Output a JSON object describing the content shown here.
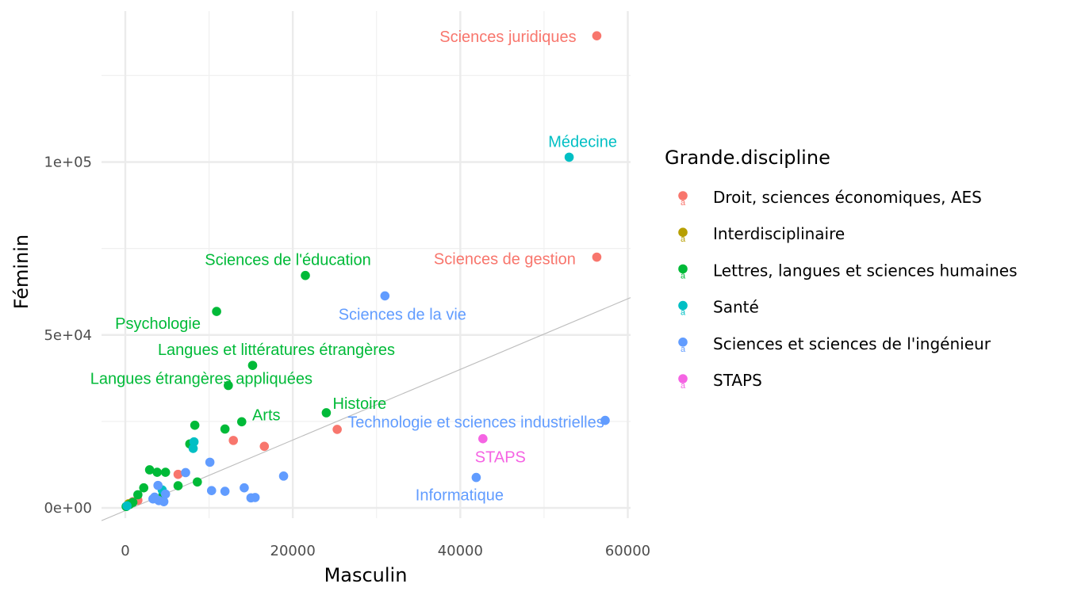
{
  "chart_data": {
    "type": "scatter",
    "xlabel": "Masculin",
    "ylabel": "Féminin",
    "xlim": [
      -3500,
      60000
    ],
    "ylim": [
      -5000,
      145000
    ],
    "x_ticks": [
      0,
      20000,
      40000,
      60000
    ],
    "x_tick_labels": [
      "0",
      "20000",
      "40000",
      "60000"
    ],
    "y_ticks": [
      0,
      50000,
      100000
    ],
    "y_tick_labels": [
      "0e+00",
      "5e+04",
      "1e+05"
    ],
    "grid": true,
    "reference_line": {
      "slope": 1,
      "intercept": 0
    },
    "legend": {
      "title": "Grande.discipline",
      "placement": "right",
      "entries": [
        {
          "name": "Droit, sciences économiques, AES",
          "color": "#F8766D"
        },
        {
          "name": "Interdisciplinaire",
          "color": "#B79F00"
        },
        {
          "name": "Lettres, langues et sciences humaines",
          "color": "#00BA38"
        },
        {
          "name": "Santé",
          "color": "#00BFC4"
        },
        {
          "name": "Sciences et sciences de l'ingénieur",
          "color": "#619CFF"
        },
        {
          "name": "STAPS",
          "color": "#F564E3"
        }
      ]
    },
    "series": [
      {
        "name": "Droit, sciences économiques, AES",
        "color": "#F8766D",
        "points": [
          {
            "x": 56300,
            "y": 136500,
            "label": "Sciences juridiques"
          },
          {
            "x": 56300,
            "y": 72500,
            "label": "Sciences de gestion"
          },
          {
            "x": 25300,
            "y": 22700
          },
          {
            "x": 16600,
            "y": 17800
          },
          {
            "x": 12900,
            "y": 19500
          },
          {
            "x": 6300,
            "y": 9700
          },
          {
            "x": 1500,
            "y": 2200
          },
          {
            "x": 900,
            "y": 1800
          }
        ]
      },
      {
        "name": "Interdisciplinaire",
        "color": "#B79F00",
        "points": [
          {
            "x": 400,
            "y": 1200
          }
        ]
      },
      {
        "name": "Lettres, langues et sciences humaines",
        "color": "#00BA38",
        "points": [
          {
            "x": 21500,
            "y": 67200,
            "label": "Sciences de l'éducation"
          },
          {
            "x": 10900,
            "y": 56800,
            "label": "Psychologie"
          },
          {
            "x": 15200,
            "y": 41200,
            "label": "Langues et littératures étrangères"
          },
          {
            "x": 12300,
            "y": 35400,
            "label": "Langues étrangères appliquées"
          },
          {
            "x": 24000,
            "y": 27500,
            "label": "Histoire"
          },
          {
            "x": 13900,
            "y": 24900,
            "label": "Arts"
          },
          {
            "x": 8300,
            "y": 23900
          },
          {
            "x": 11900,
            "y": 22800
          },
          {
            "x": 7700,
            "y": 18500
          },
          {
            "x": 2900,
            "y": 11000
          },
          {
            "x": 3800,
            "y": 10300
          },
          {
            "x": 4800,
            "y": 10300
          },
          {
            "x": 8600,
            "y": 7500
          },
          {
            "x": 6300,
            "y": 6400
          },
          {
            "x": 2200,
            "y": 5800
          },
          {
            "x": 1500,
            "y": 3800
          },
          {
            "x": 4500,
            "y": 3800
          },
          {
            "x": 900,
            "y": 1600
          },
          {
            "x": 500,
            "y": 1000
          },
          {
            "x": 100,
            "y": 400
          }
        ]
      },
      {
        "name": "Santé",
        "color": "#00BFC4",
        "points": [
          {
            "x": 53000,
            "y": 101400,
            "label": "Médecine"
          },
          {
            "x": 8200,
            "y": 19100
          },
          {
            "x": 8100,
            "y": 17200
          },
          {
            "x": 4400,
            "y": 5200
          },
          {
            "x": 200,
            "y": 600
          }
        ]
      },
      {
        "name": "Sciences et sciences de l'ingénieur",
        "color": "#619CFF",
        "points": [
          {
            "x": 31000,
            "y": 61300,
            "label": "Sciences de la vie"
          },
          {
            "x": 57300,
            "y": 25300,
            "label": "Technologie et sciences industrielles"
          },
          {
            "x": 41900,
            "y": 8800,
            "label": "Informatique"
          },
          {
            "x": 10100,
            "y": 13200
          },
          {
            "x": 18900,
            "y": 9200
          },
          {
            "x": 7200,
            "y": 10200
          },
          {
            "x": 3900,
            "y": 6500
          },
          {
            "x": 14200,
            "y": 5800
          },
          {
            "x": 10300,
            "y": 5000
          },
          {
            "x": 11900,
            "y": 4800
          },
          {
            "x": 4800,
            "y": 4000
          },
          {
            "x": 15000,
            "y": 2900
          },
          {
            "x": 15500,
            "y": 3000
          },
          {
            "x": 3300,
            "y": 2600
          },
          {
            "x": 4000,
            "y": 2100
          },
          {
            "x": 4600,
            "y": 1800
          },
          {
            "x": 3500,
            "y": 3100
          }
        ]
      },
      {
        "name": "STAPS",
        "color": "#F564E3",
        "points": [
          {
            "x": 42700,
            "y": 20000,
            "label": "STAPS"
          }
        ]
      }
    ]
  }
}
